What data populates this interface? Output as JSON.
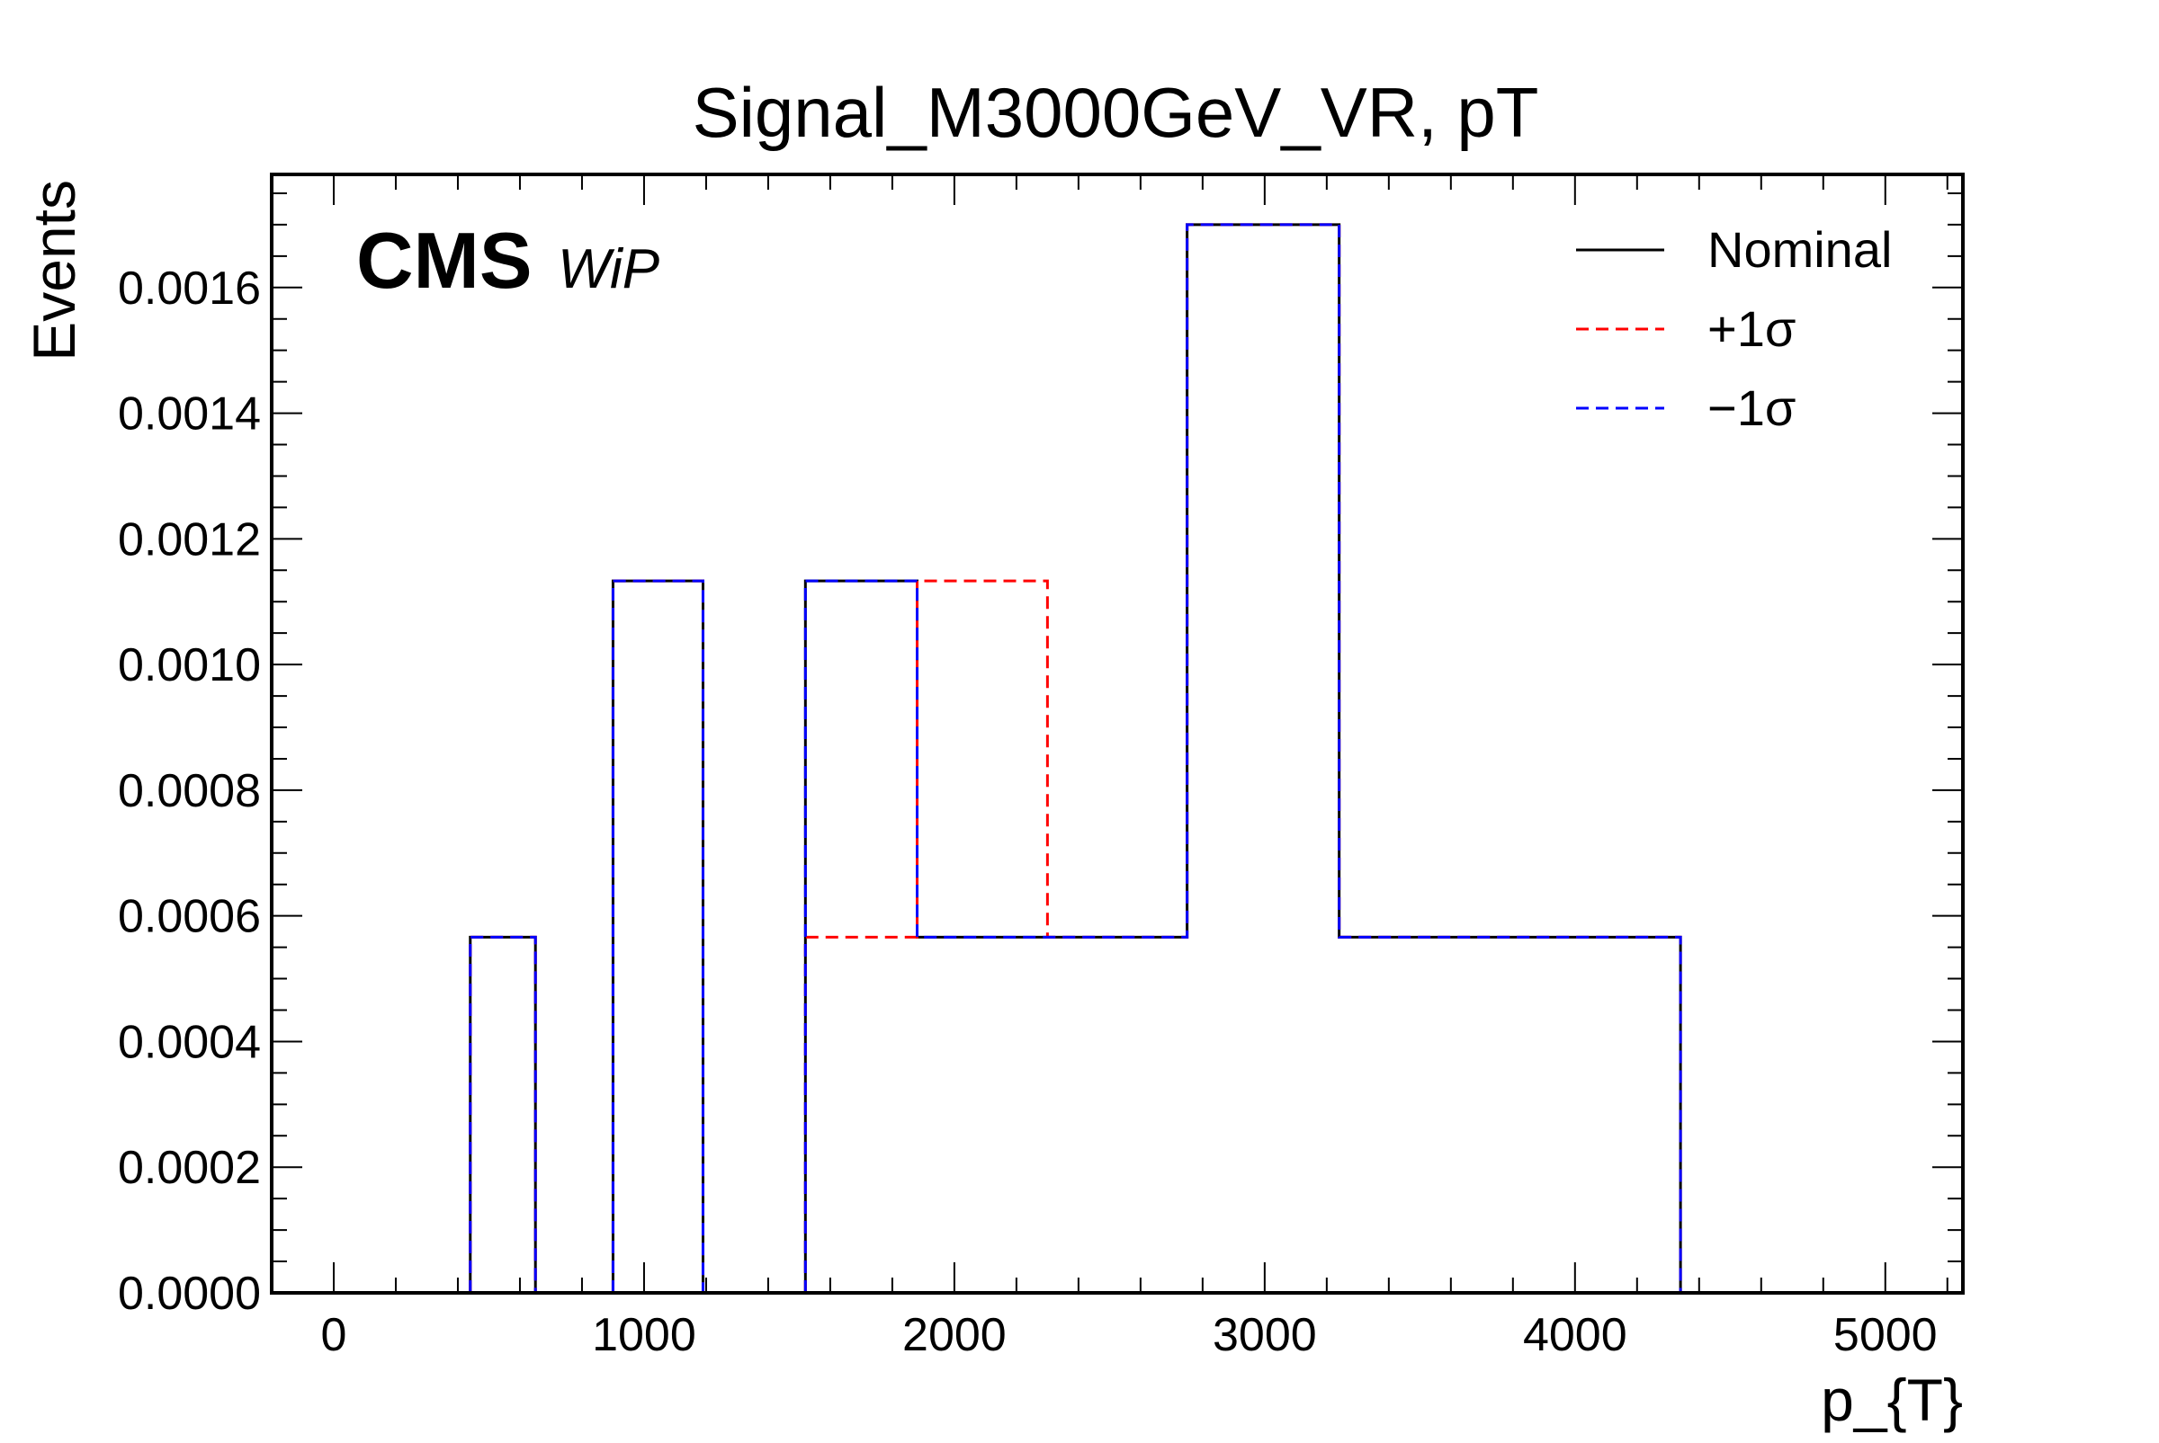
{
  "chart_data": {
    "type": "histogram",
    "title": "Signal_M3000GeV_VR, pT",
    "xlabel": "p_{T}",
    "ylabel": "Events",
    "xlim": [
      -200,
      5250
    ],
    "ylim": [
      0,
      0.00178
    ],
    "x_ticks": [
      0,
      1000,
      2000,
      3000,
      4000,
      5000
    ],
    "x_tick_labels": [
      "0",
      "1000",
      "2000",
      "3000",
      "4000",
      "5000"
    ],
    "y_ticks": [
      0,
      0.0002,
      0.0004,
      0.0006,
      0.0008,
      0.001,
      0.0012,
      0.0014,
      0.0016
    ],
    "y_tick_labels": [
      "0.0000",
      "0.0002",
      "0.0004",
      "0.0006",
      "0.0008",
      "0.0010",
      "0.0012",
      "0.0014",
      "0.0016"
    ],
    "grid": false,
    "legend_position": "top-right",
    "label": {
      "main": "CMS",
      "sub": "WiP"
    },
    "series": [
      {
        "name": "Nominal",
        "color": "#000000",
        "style": "solid",
        "bins": [
          [
            440,
            650,
            0.000566
          ],
          [
            900,
            1190,
            0.001133
          ],
          [
            1520,
            1880,
            0.001133
          ],
          [
            1880,
            2750,
            0.000566
          ],
          [
            2750,
            3240,
            0.0017
          ],
          [
            3240,
            4340,
            0.000566
          ]
        ]
      },
      {
        "name": "+1σ",
        "color": "#ff0000",
        "style": "dashed",
        "bins": [
          [
            440,
            650,
            0.000566
          ],
          [
            900,
            1190,
            0.001133
          ],
          [
            1520,
            1880,
            0.000566
          ],
          [
            1880,
            2300,
            0.001133
          ],
          [
            2300,
            2750,
            0.000566
          ],
          [
            2750,
            3240,
            0.0017
          ],
          [
            3240,
            4340,
            0.000566
          ]
        ]
      },
      {
        "name": "−1σ",
        "color": "#0000ff",
        "style": "dashed",
        "bins": [
          [
            440,
            650,
            0.000566
          ],
          [
            900,
            1190,
            0.001133
          ],
          [
            1520,
            1880,
            0.001133
          ],
          [
            1880,
            2750,
            0.000566
          ],
          [
            2750,
            3240,
            0.0017
          ],
          [
            3240,
            4340,
            0.000566
          ]
        ]
      }
    ]
  }
}
